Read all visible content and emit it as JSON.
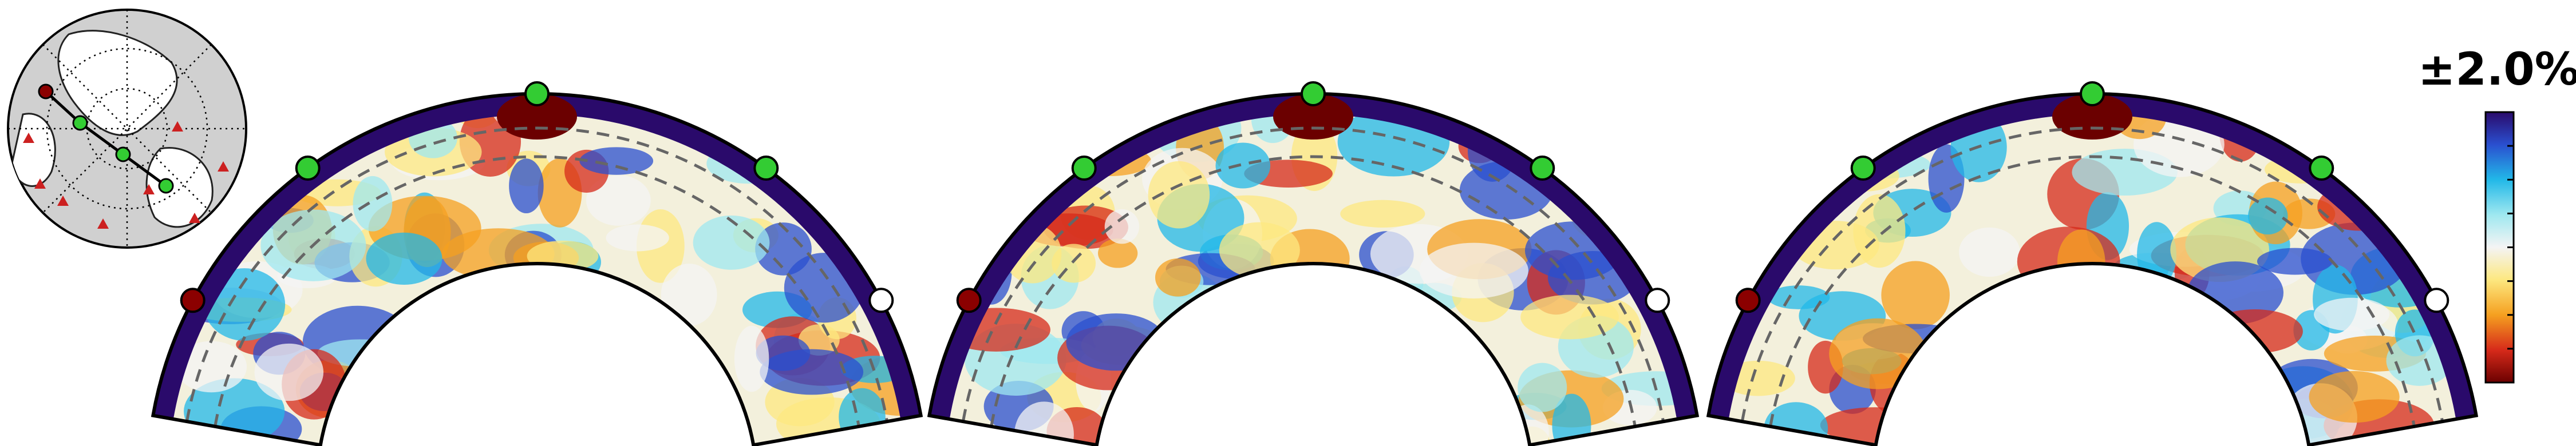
{
  "colorbar": {
    "label": "±2.0%"
  }
}
